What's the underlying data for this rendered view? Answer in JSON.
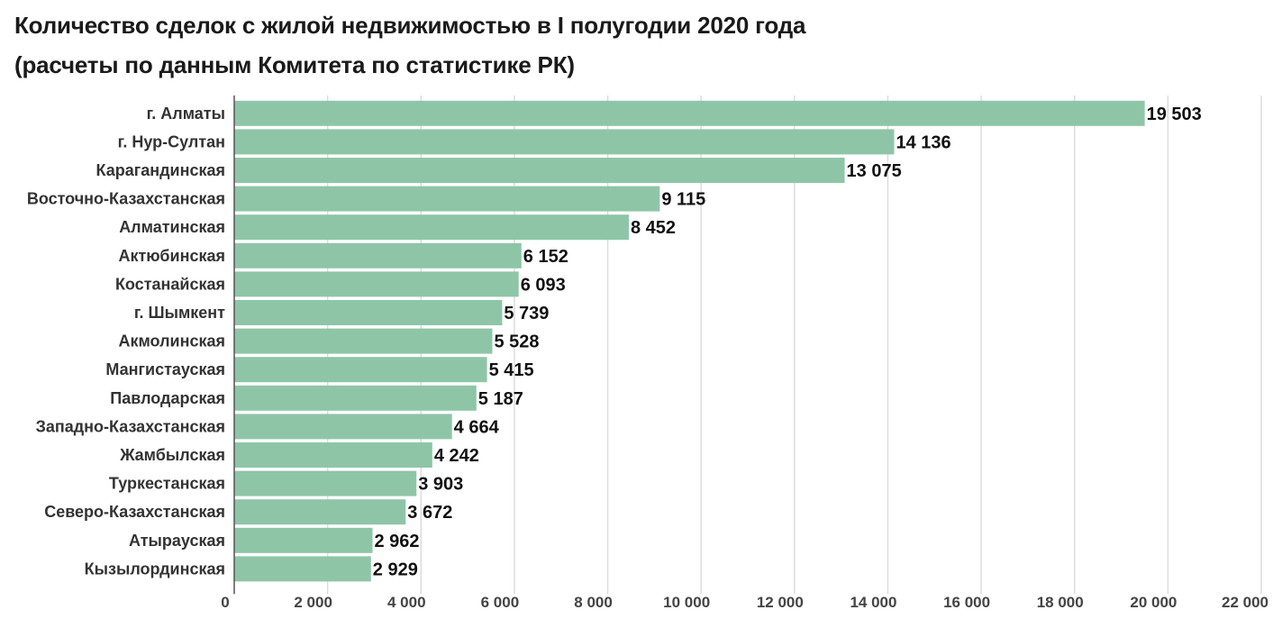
{
  "title_line1": "Количество сделок с жилой недвижимостью в I полугодии 2020 года",
  "title_line2": "(расчеты по данным Комитета по статистике РК)",
  "chart_data": {
    "type": "bar",
    "orientation": "horizontal",
    "bar_color": "#8fc5a7",
    "grid": true,
    "xlim": [
      0,
      22000
    ],
    "ticks": [
      0,
      2000,
      4000,
      6000,
      8000,
      10000,
      12000,
      14000,
      16000,
      18000,
      20000,
      22000
    ],
    "tick_labels": [
      "0",
      "2 000",
      "4 000",
      "6 000",
      "8 000",
      "10 000",
      "12 000",
      "14 000",
      "16 000",
      "18 000",
      "20 000",
      "22 000"
    ],
    "categories": [
      "г. Алматы",
      "г. Нур-Султан",
      "Карагандинская",
      "Восточно-Казахстанская",
      "Алматинская",
      "Актюбинская",
      "Костанайская",
      "г. Шымкент",
      "Акмолинская",
      "Мангистауская",
      "Павлодарская",
      "Западно-Казахстанская",
      "Жамбылская",
      "Туркестанская",
      "Северо-Казахстанская",
      "Атырауская",
      "Кызылординская"
    ],
    "values": [
      19503,
      14136,
      13075,
      9115,
      8452,
      6152,
      6093,
      5739,
      5528,
      5415,
      5187,
      4664,
      4242,
      3903,
      3672,
      2962,
      2929
    ],
    "value_labels": [
      "19 503",
      "14 136",
      "13 075",
      "9 115",
      "8 452",
      "6 152",
      "6 093",
      "5 739",
      "5 528",
      "5 415",
      "5 187",
      "4 664",
      "4 242",
      "3 903",
      "3 672",
      "2 962",
      "2 929"
    ]
  }
}
